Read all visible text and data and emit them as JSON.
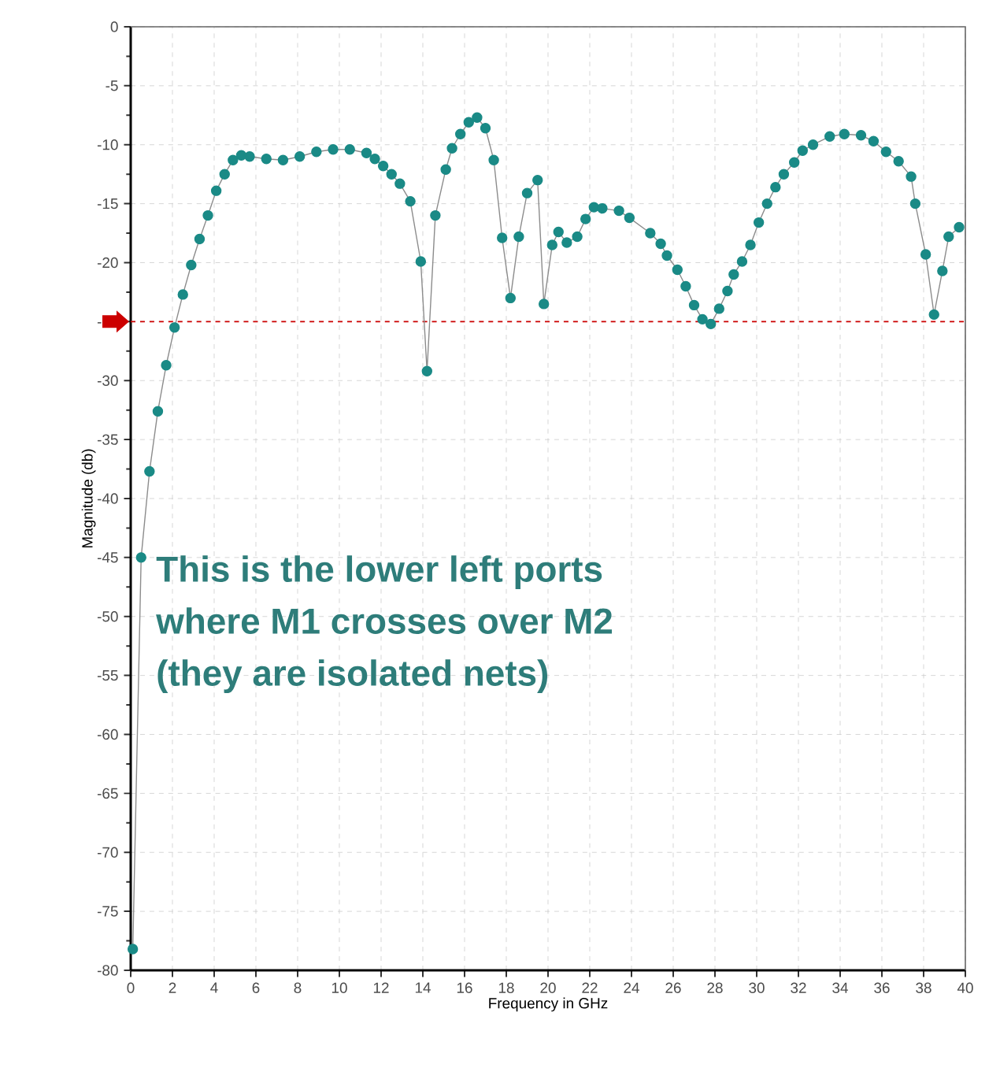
{
  "chart_data": {
    "type": "line",
    "xlabel": "Frequency in GHz",
    "ylabel": "Magnitude (db)",
    "xlim": [
      0,
      40
    ],
    "ylim": [
      -80,
      0
    ],
    "xticks": [
      0,
      2,
      4,
      6,
      8,
      10,
      12,
      14,
      16,
      18,
      20,
      22,
      24,
      26,
      28,
      30,
      32,
      34,
      36,
      38,
      40
    ],
    "yticks": [
      -80,
      -75,
      -70,
      -65,
      -60,
      -55,
      -50,
      -45,
      -40,
      -35,
      -30,
      -25,
      -20,
      -15,
      -10,
      -5,
      0
    ],
    "grid": true,
    "marker": "circle",
    "line_style": "solid",
    "series": [
      {
        "color": "#1a8a86",
        "x": [
          0.1,
          0.5,
          0.9,
          1.3,
          1.7,
          2.1,
          2.5,
          2.9,
          3.3,
          3.7,
          4.1,
          4.5,
          4.9,
          5.3,
          5.7,
          6.5,
          7.3,
          8.1,
          8.9,
          9.7,
          10.5,
          11.3,
          11.7,
          12.1,
          12.5,
          12.9,
          13.4,
          13.9,
          14.2,
          14.6,
          15.1,
          15.4,
          15.8,
          16.2,
          16.6,
          17.0,
          17.4,
          17.8,
          18.2,
          18.6,
          19.0,
          19.5,
          19.8,
          20.2,
          20.5,
          20.9,
          21.4,
          21.8,
          22.2,
          22.6,
          23.4,
          23.9,
          24.9,
          25.4,
          25.7,
          26.2,
          26.6,
          27.0,
          27.4,
          27.8,
          28.2,
          28.6,
          28.9,
          29.3,
          29.7,
          30.1,
          30.5,
          30.9,
          31.3,
          31.8,
          32.2,
          32.7,
          33.5,
          34.2,
          35.0,
          35.6,
          36.2,
          36.8,
          37.4,
          37.6,
          38.1,
          38.5,
          38.9,
          39.2,
          39.7
        ],
        "values": [
          -78.2,
          -45,
          -37.7,
          -32.6,
          -28.7,
          -25.5,
          -22.7,
          -20.2,
          -18,
          -16,
          -13.9,
          -12.5,
          -11.3,
          -10.9,
          -11,
          -11.2,
          -11.3,
          -11,
          -10.6,
          -10.4,
          -10.4,
          -10.7,
          -11.2,
          -11.8,
          -12.5,
          -13.3,
          -14.8,
          -19.9,
          -29.2,
          -16,
          -12.1,
          -10.3,
          -9.1,
          -8.1,
          -7.7,
          -8.6,
          -11.3,
          -17.9,
          -23,
          -17.8,
          -14.1,
          -13,
          -23.5,
          -18.5,
          -17.4,
          -18.3,
          -17.8,
          -16.3,
          -15.3,
          -15.4,
          -15.6,
          -16.2,
          -17.5,
          -18.4,
          -19.4,
          -20.6,
          -22,
          -23.6,
          -24.8,
          -25.2,
          -23.9,
          -22.4,
          -21,
          -19.9,
          -18.5,
          -16.6,
          -15,
          -13.6,
          -12.5,
          -11.5,
          -10.5,
          -10,
          -9.3,
          -9.1,
          -9.2,
          -9.7,
          -10.6,
          -11.4,
          -12.7,
          -15,
          -19.3,
          -24.4,
          -20.7,
          -17.8,
          -17
        ]
      }
    ],
    "ref_lines": [
      {
        "axis": "y",
        "value": -25,
        "color": "#cc0000",
        "line_style": "dashed"
      }
    ],
    "annotations": [
      "This is the lower left ports",
      "where M1 crosses over M2",
      "(they are isolated nets)"
    ]
  }
}
